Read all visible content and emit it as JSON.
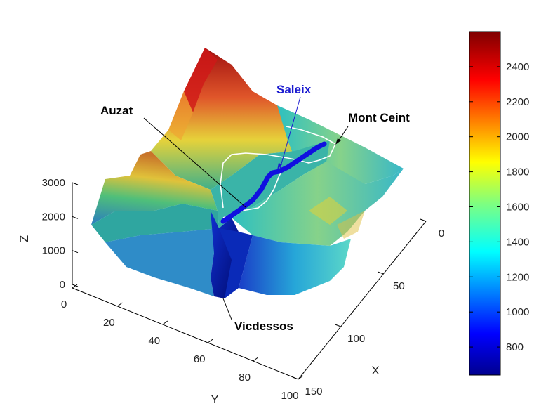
{
  "chart_data": {
    "type": "surface3d",
    "xlabel": "X",
    "ylabel": "Y",
    "zlabel": "Z",
    "x_ticks": [
      "0",
      "50",
      "100",
      "150"
    ],
    "y_ticks": [
      "0",
      "20",
      "40",
      "60",
      "80",
      "100"
    ],
    "z_ticks": [
      "0",
      "1000",
      "2000",
      "3000"
    ],
    "xlim": [
      0,
      150
    ],
    "ylim": [
      0,
      100
    ],
    "zlim": [
      0,
      3000
    ],
    "colormap": "jet",
    "colorbar": {
      "range": [
        640,
        2600
      ],
      "ticks": [
        "800",
        "1000",
        "1200",
        "1400",
        "1600",
        "1800",
        "2000",
        "2200",
        "2400"
      ]
    },
    "annotations": [
      {
        "name": "auzat",
        "text": "Auzat",
        "color": "#000000"
      },
      {
        "name": "saleix",
        "text": "Saleix",
        "color": "#1a1ad0"
      },
      {
        "name": "mont-ceint",
        "text": "Mont Ceint",
        "color": "#000000"
      },
      {
        "name": "vicdessos",
        "text": "Vicdessos",
        "color": "#000000"
      }
    ],
    "colors": {
      "route": "#1010e0",
      "trail": "#ffffff"
    }
  }
}
